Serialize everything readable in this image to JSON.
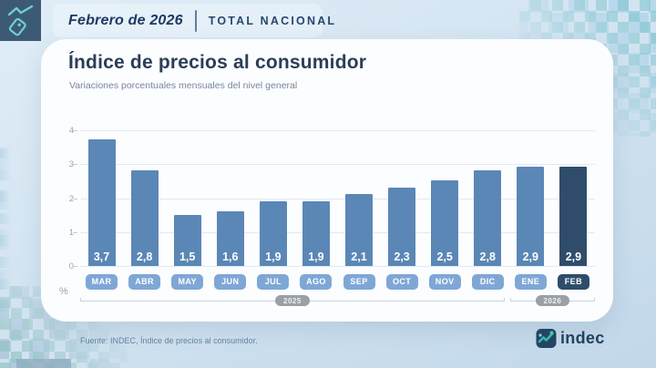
{
  "header": {
    "period": "Febrero de 2026",
    "scope": "TOTAL NACIONAL"
  },
  "card": {
    "title": "Índice de precios al consumidor",
    "subtitle": "Variaciones porcentuales mensuales del nivel general"
  },
  "chart_data": {
    "type": "bar",
    "title": "Índice de precios al consumidor",
    "subtitle": "Variaciones porcentuales mensuales del nivel general",
    "unit_label": "%",
    "ylim": [
      0,
      4
    ],
    "yticks": [
      4,
      3,
      2,
      1,
      0
    ],
    "grid": true,
    "legend": "none",
    "categories": [
      "MAR",
      "ABR",
      "MAY",
      "JUN",
      "JUL",
      "AGO",
      "SEP",
      "OCT",
      "NOV",
      "DIC",
      "ENE",
      "FEB"
    ],
    "values": [
      3.7,
      2.8,
      1.5,
      1.6,
      1.9,
      1.9,
      2.1,
      2.3,
      2.5,
      2.8,
      2.9,
      2.9
    ],
    "value_labels": [
      "3,7",
      "2,8",
      "1,5",
      "1,6",
      "1,9",
      "1,9",
      "2,1",
      "2,3",
      "2,5",
      "2,8",
      "2,9",
      "2,9"
    ],
    "highlight_index": 11,
    "year_groups": [
      {
        "label": "2025",
        "span": 10
      },
      {
        "label": "2026",
        "span": 2
      }
    ],
    "colors": {
      "bar": "#5b87b6",
      "bar_highlight": "#2f4d6b",
      "month_pill": "#7fa7d6",
      "month_pill_highlight": "#2f4d6b",
      "year_pill": "#9aa0a5",
      "gridline": "#e2e9f1"
    }
  },
  "footer": {
    "source": "Fuente: INDEC, Índice de precios al consumidor.",
    "logo_text": "indec"
  }
}
